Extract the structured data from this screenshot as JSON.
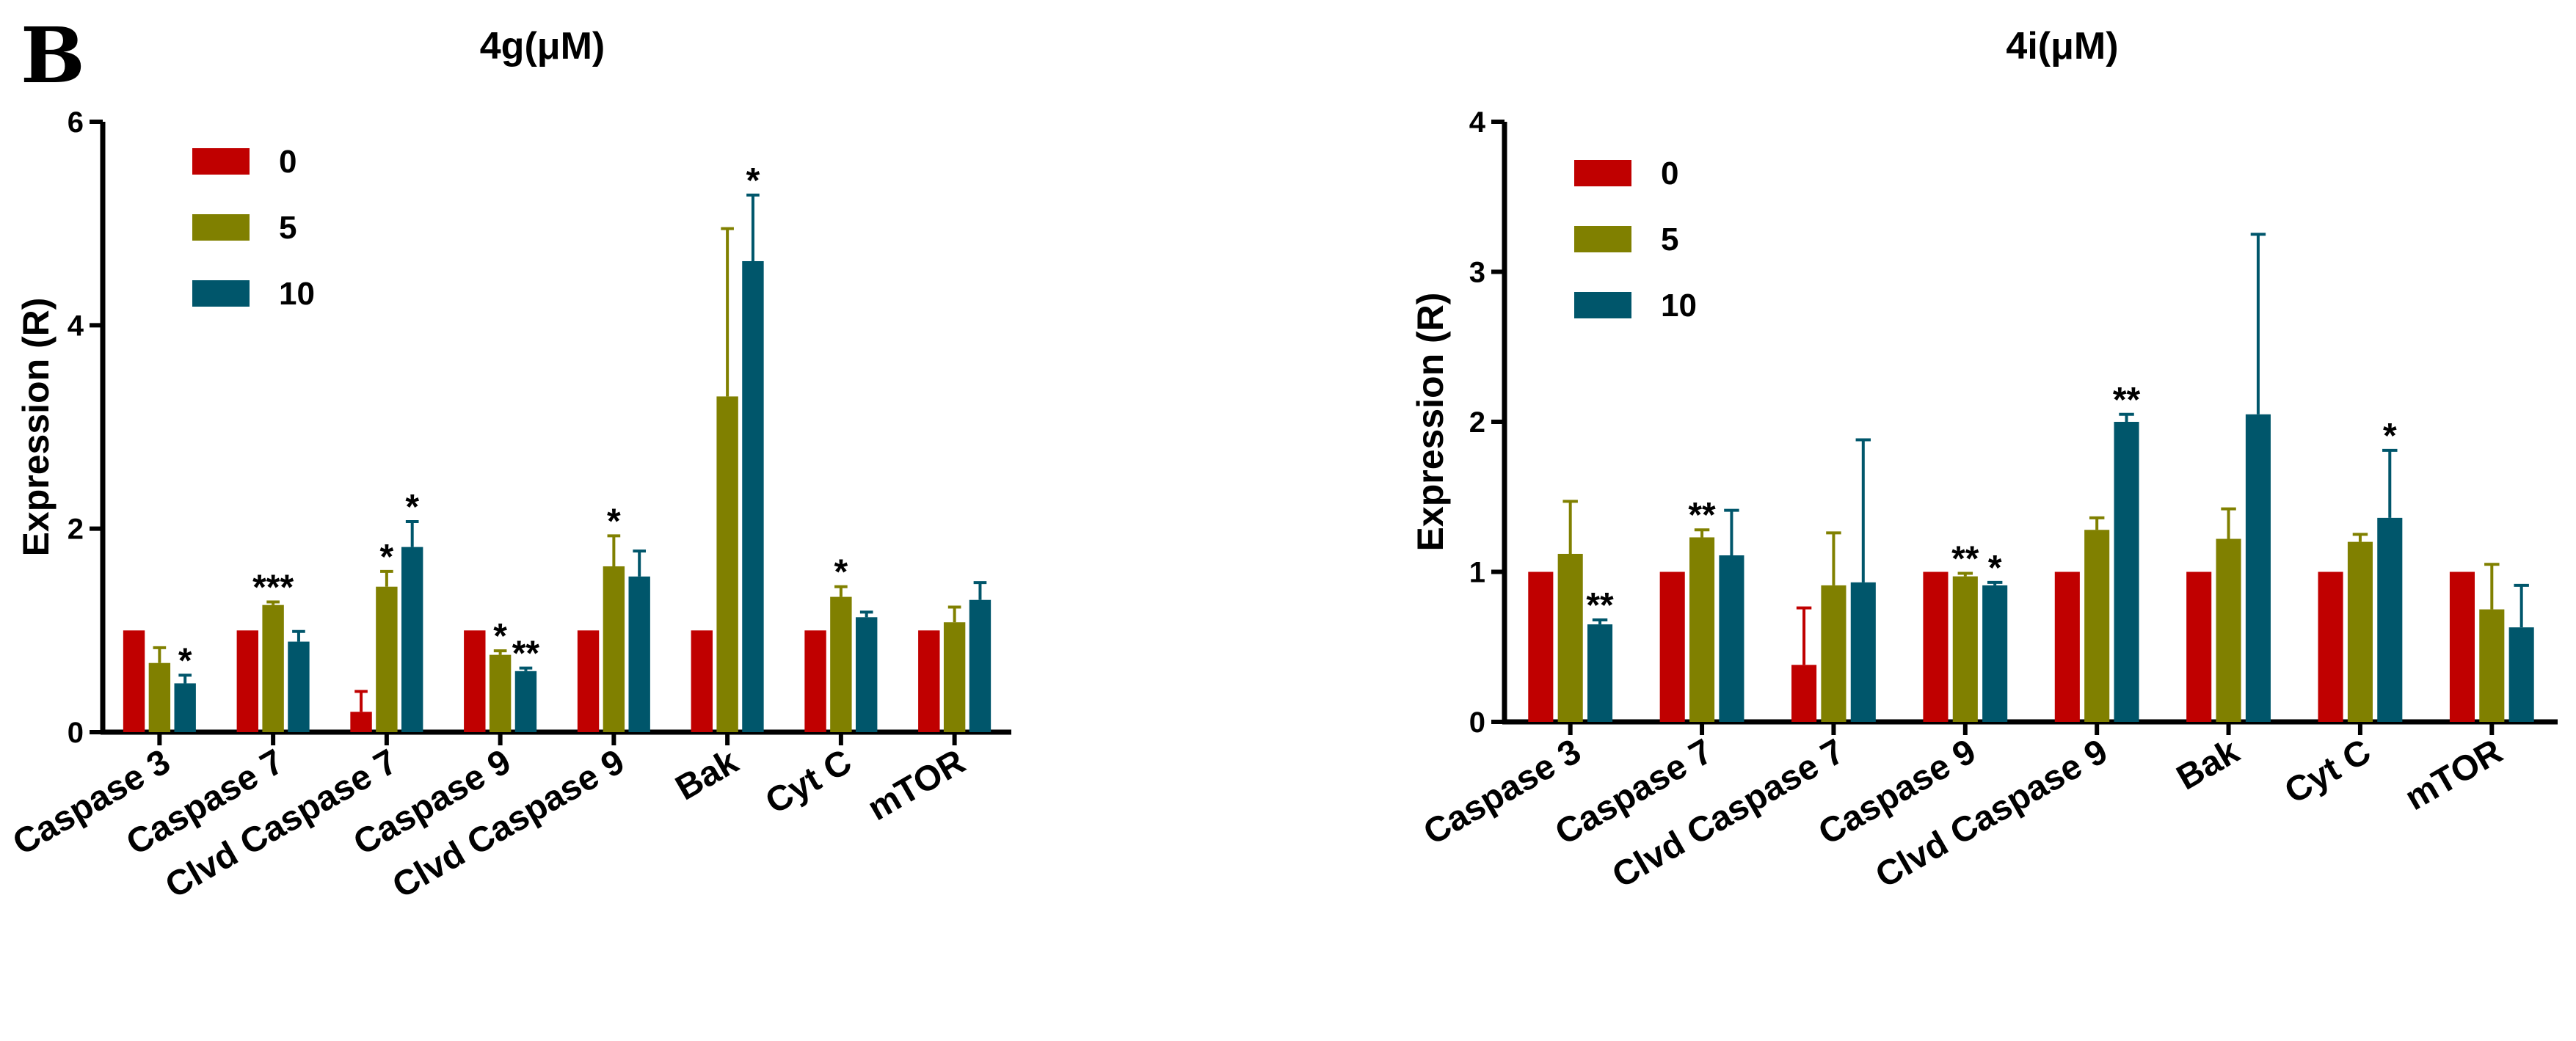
{
  "panel_label": "B",
  "chart_data": [
    {
      "type": "bar",
      "title": "4g(μM)",
      "ylabel": "Expression (R)",
      "xlabel": "",
      "ylim": [
        0,
        6
      ],
      "yticks": [
        "0",
        "2",
        "4",
        "6"
      ],
      "categories": [
        "Caspase 3",
        "Caspase 7",
        "Clvd Caspase 7",
        "Caspase 9",
        "Clvd Caspase 9",
        "Bak",
        "Cyt C",
        "mTOR"
      ],
      "legend_position": "top-left",
      "series": [
        {
          "name": "0",
          "color": "#c00000",
          "values": [
            1,
            1,
            0.2,
            1,
            1,
            1,
            1,
            1
          ],
          "errors": [
            0,
            0,
            0.2,
            0,
            0,
            0,
            0,
            0
          ],
          "sig": [
            "",
            "",
            "",
            "",
            "",
            "",
            "",
            ""
          ]
        },
        {
          "name": "5",
          "color": "#808000",
          "values": [
            0.68,
            1.25,
            1.43,
            0.76,
            1.63,
            3.3,
            1.33,
            1.08
          ],
          "errors": [
            0.15,
            0.03,
            0.15,
            0.04,
            0.3,
            1.65,
            0.1,
            0.15
          ],
          "sig": [
            "",
            "***",
            "*",
            "*",
            "*",
            "",
            "*",
            ""
          ]
        },
        {
          "name": "10",
          "color": "#00566b",
          "values": [
            0.48,
            0.89,
            1.82,
            0.6,
            1.53,
            4.63,
            1.13,
            1.3
          ],
          "errors": [
            0.08,
            0.1,
            0.25,
            0.03,
            0.25,
            0.65,
            0.05,
            0.17
          ],
          "sig": [
            "*",
            "",
            "*",
            "**",
            "",
            "*",
            "",
            ""
          ]
        }
      ]
    },
    {
      "type": "bar",
      "title": "4i(μM)",
      "ylabel": "Expression (R)",
      "xlabel": "",
      "ylim": [
        0,
        4
      ],
      "yticks": [
        "0",
        "1",
        "2",
        "3",
        "4"
      ],
      "categories": [
        "Caspase 3",
        "Caspase 7",
        "Clvd Caspase 7",
        "Caspase 9",
        "Clvd Caspase 9",
        "Bak",
        "Cyt C",
        "mTOR"
      ],
      "legend_position": "top-left",
      "series": [
        {
          "name": "0",
          "color": "#c00000",
          "values": [
            1,
            1,
            0.38,
            1,
            1,
            1,
            1,
            1
          ],
          "errors": [
            0,
            0,
            0.38,
            0,
            0,
            0,
            0,
            0
          ],
          "sig": [
            "",
            "",
            "",
            "",
            "",
            "",
            "",
            ""
          ]
        },
        {
          "name": "5",
          "color": "#808000",
          "values": [
            1.12,
            1.23,
            0.91,
            0.97,
            1.28,
            1.22,
            1.2,
            0.75
          ],
          "errors": [
            0.35,
            0.05,
            0.35,
            0.02,
            0.08,
            0.2,
            0.05,
            0.3
          ],
          "sig": [
            "",
            "**",
            "",
            "**",
            "",
            "",
            "",
            ""
          ]
        },
        {
          "name": "10",
          "color": "#00566b",
          "values": [
            0.65,
            1.11,
            0.93,
            0.91,
            2.0,
            2.05,
            1.36,
            0.63
          ],
          "errors": [
            0.03,
            0.3,
            0.95,
            0.02,
            0.05,
            1.2,
            0.45,
            0.28
          ],
          "sig": [
            "**",
            "",
            "",
            "*",
            "**",
            "",
            "*",
            ""
          ]
        }
      ]
    }
  ]
}
